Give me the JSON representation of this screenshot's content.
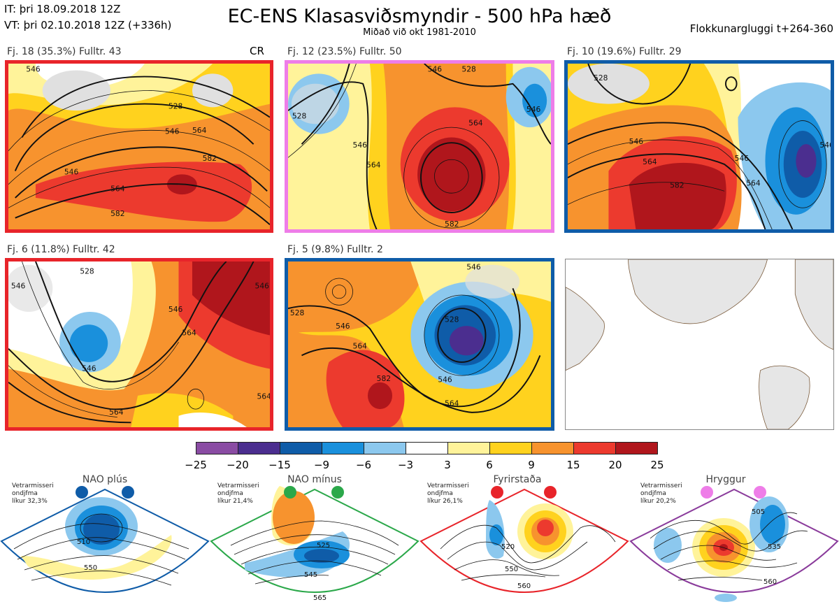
{
  "header": {
    "it": "IT: þri 18.09.2018 12Z",
    "vt": "VT: þri 02.10.2018 12Z  (+336h)",
    "title": "EC-ENS Klasasviðsmyndir - 500 hPa hæð",
    "subtitle": "Miðað við okt 1981-2010",
    "window": "Flokkunargluggi t+264-360"
  },
  "panels": [
    {
      "label": "Fj. 18 (35.3%)   Fulltr. 43",
      "border": "#e8242a",
      "tag": "CR",
      "contours": [
        "546",
        "528",
        "546",
        "564",
        "582",
        "546",
        "564",
        "582",
        "546"
      ]
    },
    {
      "label": "Fj. 12 (23.5%)   Fulltr. 50",
      "border": "#ee7de8",
      "contours": [
        "546",
        "528",
        "564",
        "546",
        "564",
        "582",
        "528",
        "546"
      ]
    },
    {
      "label": "Fj. 10 (19.6%)   Fulltr. 29",
      "border": "#0f5ca8",
      "contours": [
        "528",
        "546",
        "564",
        "582",
        "546",
        "564",
        "546"
      ]
    },
    {
      "label": "Fj. 6 (11.8%)   Fulltr. 42",
      "border": "#e8242a",
      "contours": [
        "546",
        "528",
        "546",
        "564",
        "546",
        "564",
        "546",
        "564"
      ]
    },
    {
      "label": "Fj. 5 (9.8%)   Fulltr. 2",
      "border": "#0f5ca8",
      "contours": [
        "528",
        "546",
        "564",
        "528",
        "546",
        "582",
        "564",
        "546"
      ]
    }
  ],
  "colorbar": {
    "ticks": [
      "−25",
      "−20",
      "−15",
      "−9",
      "−6",
      "−3",
      "3",
      "6",
      "9",
      "15",
      "20",
      "25"
    ],
    "colors": [
      "#8a4ca3",
      "#4b2e8f",
      "#0f5ca8",
      "#1a90dc",
      "#8cc8ee",
      "#ffffff",
      "#fff39a",
      "#ffd21e",
      "#f7932e",
      "#ec3a2e",
      "#b0161c"
    ]
  },
  "regimes": [
    {
      "name": "NAO plús",
      "info": [
        "Vetrarmisseri",
        "ondjfma",
        "líkur 32,3%"
      ],
      "color": "#0f5ca8",
      "dot": "#0f5ca8",
      "contours": [
        "510",
        "550"
      ]
    },
    {
      "name": "NAO mínus",
      "info": [
        "Vetrarmisseri",
        "ondjfma",
        "líkur 21,4%"
      ],
      "color": "#2ba84a",
      "dot": "#2ba84a",
      "contours": [
        "525",
        "545",
        "565"
      ]
    },
    {
      "name": "Fyrirstaða",
      "info": [
        "Vetrarmisseri",
        "ondjfma",
        "líkur 26,1%"
      ],
      "color": "#e8242a",
      "dot": "#e8242a",
      "contours": [
        "520",
        "550",
        "560"
      ]
    },
    {
      "name": "Hryggur",
      "info": [
        "Vetrarmisseri",
        "ondjfma",
        "líkur 20,2%"
      ],
      "color": "#8a3b9b",
      "dot": "#ee7de8",
      "contours": [
        "505",
        "535",
        "560"
      ]
    }
  ]
}
